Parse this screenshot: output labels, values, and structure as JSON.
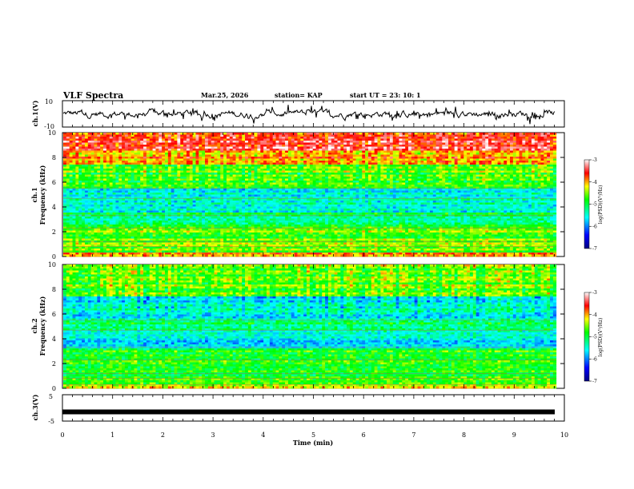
{
  "chart_data": [
    {
      "type": "line",
      "panel": "ch1-waveform",
      "ylabel": "ch.1(V)",
      "ylim": [
        -10,
        10
      ],
      "yticks": [
        "10",
        "-10"
      ],
      "xlim": [
        0,
        10
      ],
      "color": "#000000"
    },
    {
      "type": "heatmap",
      "panel": "ch1-spectrogram",
      "ylabel": "ch.1 Frequency (kHz)",
      "ylabel_lines": [
        "ch.1",
        "Frequency (kHz)"
      ],
      "yticks": [
        "0",
        "2",
        "4",
        "6",
        "8",
        "10"
      ],
      "ylim": [
        0,
        10
      ],
      "xlim": [
        0,
        10
      ],
      "colorbar": {
        "label": "log(PSD)(V²/Hz)",
        "ticks": [
          "-3",
          "-4",
          "-5",
          "-6",
          "-7"
        ],
        "range": [
          -7,
          -3
        ]
      },
      "bands": [
        {
          "from": 0.0,
          "to": 0.4,
          "level": -4.0
        },
        {
          "from": 0.4,
          "to": 2.5,
          "level": -4.6
        },
        {
          "from": 2.5,
          "to": 3.5,
          "level": -5.1
        },
        {
          "from": 3.5,
          "to": 5.5,
          "level": -5.5
        },
        {
          "from": 5.5,
          "to": 7.5,
          "level": -4.7
        },
        {
          "from": 7.5,
          "to": 8.5,
          "level": -4.0
        },
        {
          "from": 8.5,
          "to": 10.0,
          "level": -3.5
        }
      ]
    },
    {
      "type": "heatmap",
      "panel": "ch2-spectrogram",
      "ylabel": "ch.2 Frequency (kHz)",
      "ylabel_lines": [
        "ch.2",
        "Frequency (kHz)"
      ],
      "yticks": [
        "0",
        "2",
        "4",
        "6",
        "8",
        "10"
      ],
      "ylim": [
        0,
        10
      ],
      "xlim": [
        0,
        10
      ],
      "colorbar": {
        "label": "log(PSD)(V²/Hz)",
        "ticks": [
          "-3",
          "-4",
          "-5",
          "-6",
          "-7"
        ],
        "range": [
          -7,
          -3
        ]
      },
      "bands": [
        {
          "from": 0.0,
          "to": 0.4,
          "level": -4.2
        },
        {
          "from": 0.4,
          "to": 3.2,
          "level": -4.8
        },
        {
          "from": 3.2,
          "to": 4.5,
          "level": -5.6
        },
        {
          "from": 4.5,
          "to": 5.5,
          "level": -5.2
        },
        {
          "from": 5.5,
          "to": 7.5,
          "level": -5.5
        },
        {
          "from": 7.5,
          "to": 10.0,
          "level": -4.6
        }
      ]
    },
    {
      "type": "line",
      "panel": "ch3-waveform",
      "ylabel": "ch.3(V)",
      "ylim": [
        -5,
        5
      ],
      "yticks": [
        "5",
        "-5"
      ],
      "xlim": [
        0,
        10
      ],
      "constant_value": -1.5,
      "color": "#000000"
    }
  ],
  "header": {
    "title": "VLF Spectra",
    "date": "Mar.25, 2026",
    "station": "station= KAP",
    "start": "start  UT =   23: 10: 1"
  },
  "xaxis": {
    "label": "Time (min)",
    "ticks": [
      "0",
      "1",
      "2",
      "3",
      "4",
      "5",
      "6",
      "7",
      "8",
      "9",
      "10"
    ],
    "range": [
      0,
      10
    ]
  }
}
